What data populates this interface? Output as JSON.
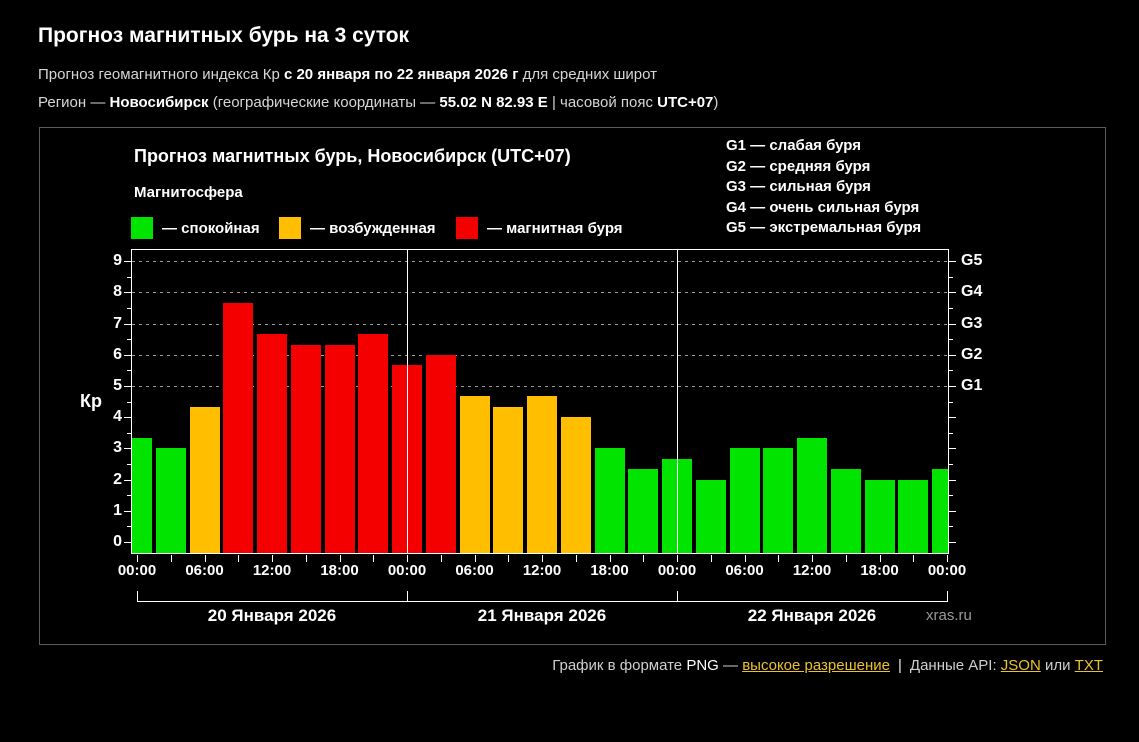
{
  "page": {
    "title": "Прогноз магнитных бурь на 3 суток",
    "subtitle_prefix": "Прогноз геомагнитного индекса Кр ",
    "subtitle_bold": "с 20 января по 22 января 2026 г",
    "subtitle_suffix": " для средних широт",
    "region_prefix": "Регион — ",
    "region_name": "Новосибирск",
    "region_mid": " (географические координаты — ",
    "region_coords": "55.02 N 82.93 E",
    "region_sep": " | часовой пояс ",
    "region_tz": "UTC+07",
    "region_close": ")"
  },
  "chart": {
    "title": "Прогноз магнитных бурь, Новосибирск (UTC+07)",
    "legend_title": "Магнитосфера",
    "legend": [
      {
        "status": "quiet",
        "label": "— спокойная",
        "color": "#00e400"
      },
      {
        "status": "disturbed",
        "label": "— возбужденная",
        "color": "#ffbf00"
      },
      {
        "status": "storm",
        "label": "— магнитная буря",
        "color": "#f50000"
      }
    ],
    "g_legend": [
      "G1 — слабая буря",
      "G2 — средняя буря",
      "G3 — сильная буря",
      "G4 — очень сильная буря",
      "G5 — экстремальная буря"
    ],
    "watermark": "xras.ru"
  },
  "chart_data": {
    "type": "bar",
    "title": "Прогноз магнитных бурь, Новосибирск (UTC+07)",
    "ylabel": "Кр",
    "ylim": [
      0,
      9
    ],
    "hours_start": 0,
    "hours_step": 3,
    "values": [
      3.33,
      3,
      4.33,
      7.67,
      6.67,
      6.33,
      6.33,
      6.67,
      5.67,
      6,
      4.67,
      4.33,
      4.67,
      4,
      3,
      2.33,
      2.67,
      2,
      3,
      3,
      3.33,
      2.33,
      2,
      2,
      2.33
    ],
    "status_thresholds": {
      "storm_min_kp": 5,
      "disturbed_min_kp": 4
    },
    "colors": {
      "quiet": "#00e400",
      "disturbed": "#ffbf00",
      "storm": "#f50000"
    },
    "ytick_labels": [
      "0",
      "1",
      "2",
      "3",
      "4",
      "5",
      "6",
      "7",
      "8",
      "9"
    ],
    "g_levels": [
      {
        "label": "G1",
        "kp": 5
      },
      {
        "label": "G2",
        "kp": 6
      },
      {
        "label": "G3",
        "kp": 7
      },
      {
        "label": "G4",
        "kp": 8
      },
      {
        "label": "G5",
        "kp": 9
      }
    ],
    "x_tick_labels": [
      "00:00",
      "06:00",
      "12:00",
      "18:00",
      "00:00",
      "06:00",
      "12:00",
      "18:00",
      "00:00",
      "06:00",
      "12:00",
      "18:00",
      "00:00"
    ],
    "x_label_step_hours": 6,
    "day_labels": [
      "20 Января 2026",
      "21 Января 2026",
      "22 Января 2026"
    ],
    "day_boundaries_hours": [
      24,
      48
    ],
    "grid_on_kp": [
      5,
      6,
      7,
      8,
      9
    ],
    "legend_position": "top"
  },
  "footer": {
    "text_prefix": "График в формате ",
    "png": "PNG",
    "dash": " — ",
    "hires_link": "высокое разрешение",
    "divider": "|",
    "api_label": "Данные API: ",
    "json_link": "JSON",
    "or": " или ",
    "txt_link": "TXT",
    "link_color": "#eac22e"
  }
}
